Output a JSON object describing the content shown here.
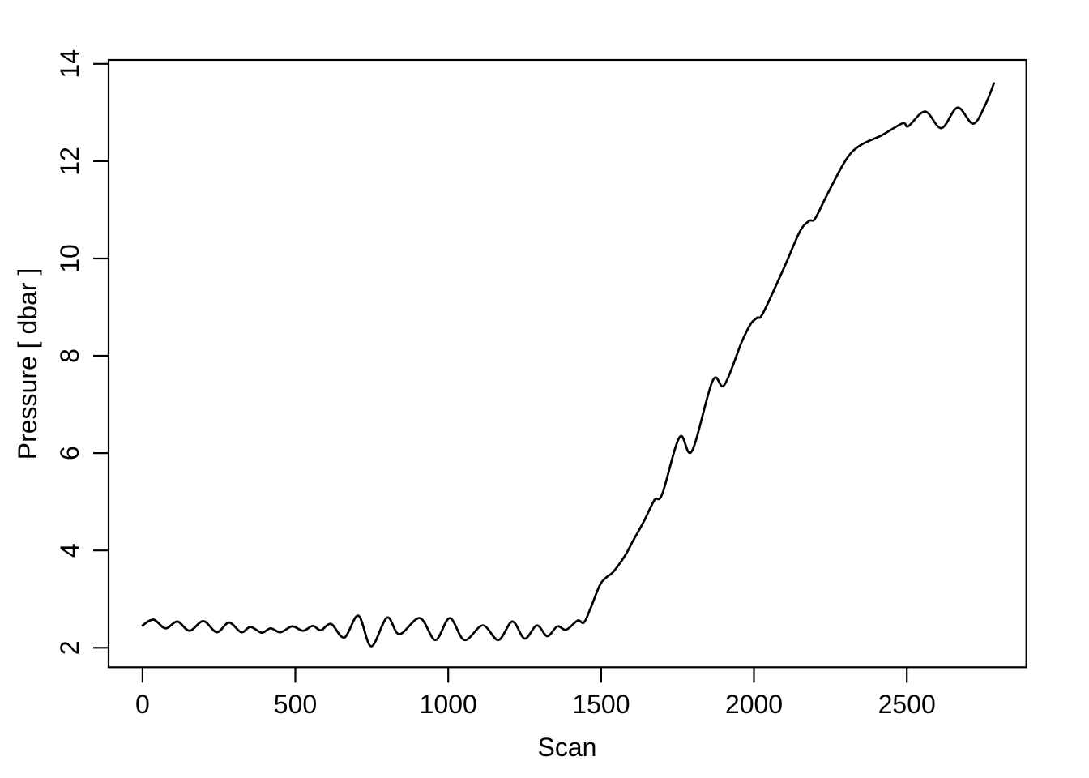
{
  "figure": {
    "background": "#ffffff",
    "axis_color": "#000000"
  },
  "chart_data": {
    "type": "line",
    "title": "",
    "xlabel": "Scan",
    "ylabel": "Pressure [ dbar ]",
    "x_ticks": [
      0,
      500,
      1000,
      1500,
      2000,
      2500
    ],
    "y_ticks": [
      2,
      4,
      6,
      8,
      10,
      12,
      14
    ],
    "xlim": [
      -111,
      2891
    ],
    "ylim": [
      1.6,
      14.08
    ],
    "grid": false,
    "legend": "none",
    "box": true,
    "series": [
      {
        "name": "Pressure",
        "color": "#000000",
        "line_width": 2.7,
        "points": [
          [
            0,
            2.46
          ],
          [
            36,
            2.58
          ],
          [
            75,
            2.4
          ],
          [
            114,
            2.54
          ],
          [
            154,
            2.35
          ],
          [
            199,
            2.55
          ],
          [
            243,
            2.32
          ],
          [
            283,
            2.52
          ],
          [
            323,
            2.32
          ],
          [
            353,
            2.43
          ],
          [
            390,
            2.31
          ],
          [
            419,
            2.4
          ],
          [
            451,
            2.32
          ],
          [
            490,
            2.44
          ],
          [
            525,
            2.35
          ],
          [
            557,
            2.45
          ],
          [
            583,
            2.36
          ],
          [
            617,
            2.49
          ],
          [
            660,
            2.21
          ],
          [
            706,
            2.66
          ],
          [
            748,
            2.03
          ],
          [
            800,
            2.62
          ],
          [
            840,
            2.28
          ],
          [
            907,
            2.61
          ],
          [
            958,
            2.16
          ],
          [
            1005,
            2.61
          ],
          [
            1053,
            2.16
          ],
          [
            1113,
            2.46
          ],
          [
            1164,
            2.16
          ],
          [
            1210,
            2.54
          ],
          [
            1250,
            2.19
          ],
          [
            1290,
            2.46
          ],
          [
            1324,
            2.24
          ],
          [
            1357,
            2.44
          ],
          [
            1386,
            2.37
          ],
          [
            1423,
            2.56
          ],
          [
            1444,
            2.52
          ],
          [
            1466,
            2.82
          ],
          [
            1497,
            3.3
          ],
          [
            1520,
            3.46
          ],
          [
            1540,
            3.56
          ],
          [
            1577,
            3.88
          ],
          [
            1603,
            4.18
          ],
          [
            1640,
            4.6
          ],
          [
            1675,
            5.04
          ],
          [
            1700,
            5.16
          ],
          [
            1757,
            6.33
          ],
          [
            1797,
            6.04
          ],
          [
            1865,
            7.49
          ],
          [
            1903,
            7.4
          ],
          [
            1961,
            8.3
          ],
          [
            1990,
            8.66
          ],
          [
            2010,
            8.78
          ],
          [
            2030,
            8.88
          ],
          [
            2099,
            9.82
          ],
          [
            2150,
            10.55
          ],
          [
            2180,
            10.77
          ],
          [
            2200,
            10.82
          ],
          [
            2240,
            11.32
          ],
          [
            2301,
            12.03
          ],
          [
            2346,
            12.32
          ],
          [
            2417,
            12.53
          ],
          [
            2486,
            12.78
          ],
          [
            2505,
            12.72
          ],
          [
            2560,
            13.02
          ],
          [
            2613,
            12.68
          ],
          [
            2666,
            13.1
          ],
          [
            2717,
            12.77
          ],
          [
            2756,
            13.15
          ],
          [
            2785,
            13.6
          ]
        ]
      }
    ]
  }
}
